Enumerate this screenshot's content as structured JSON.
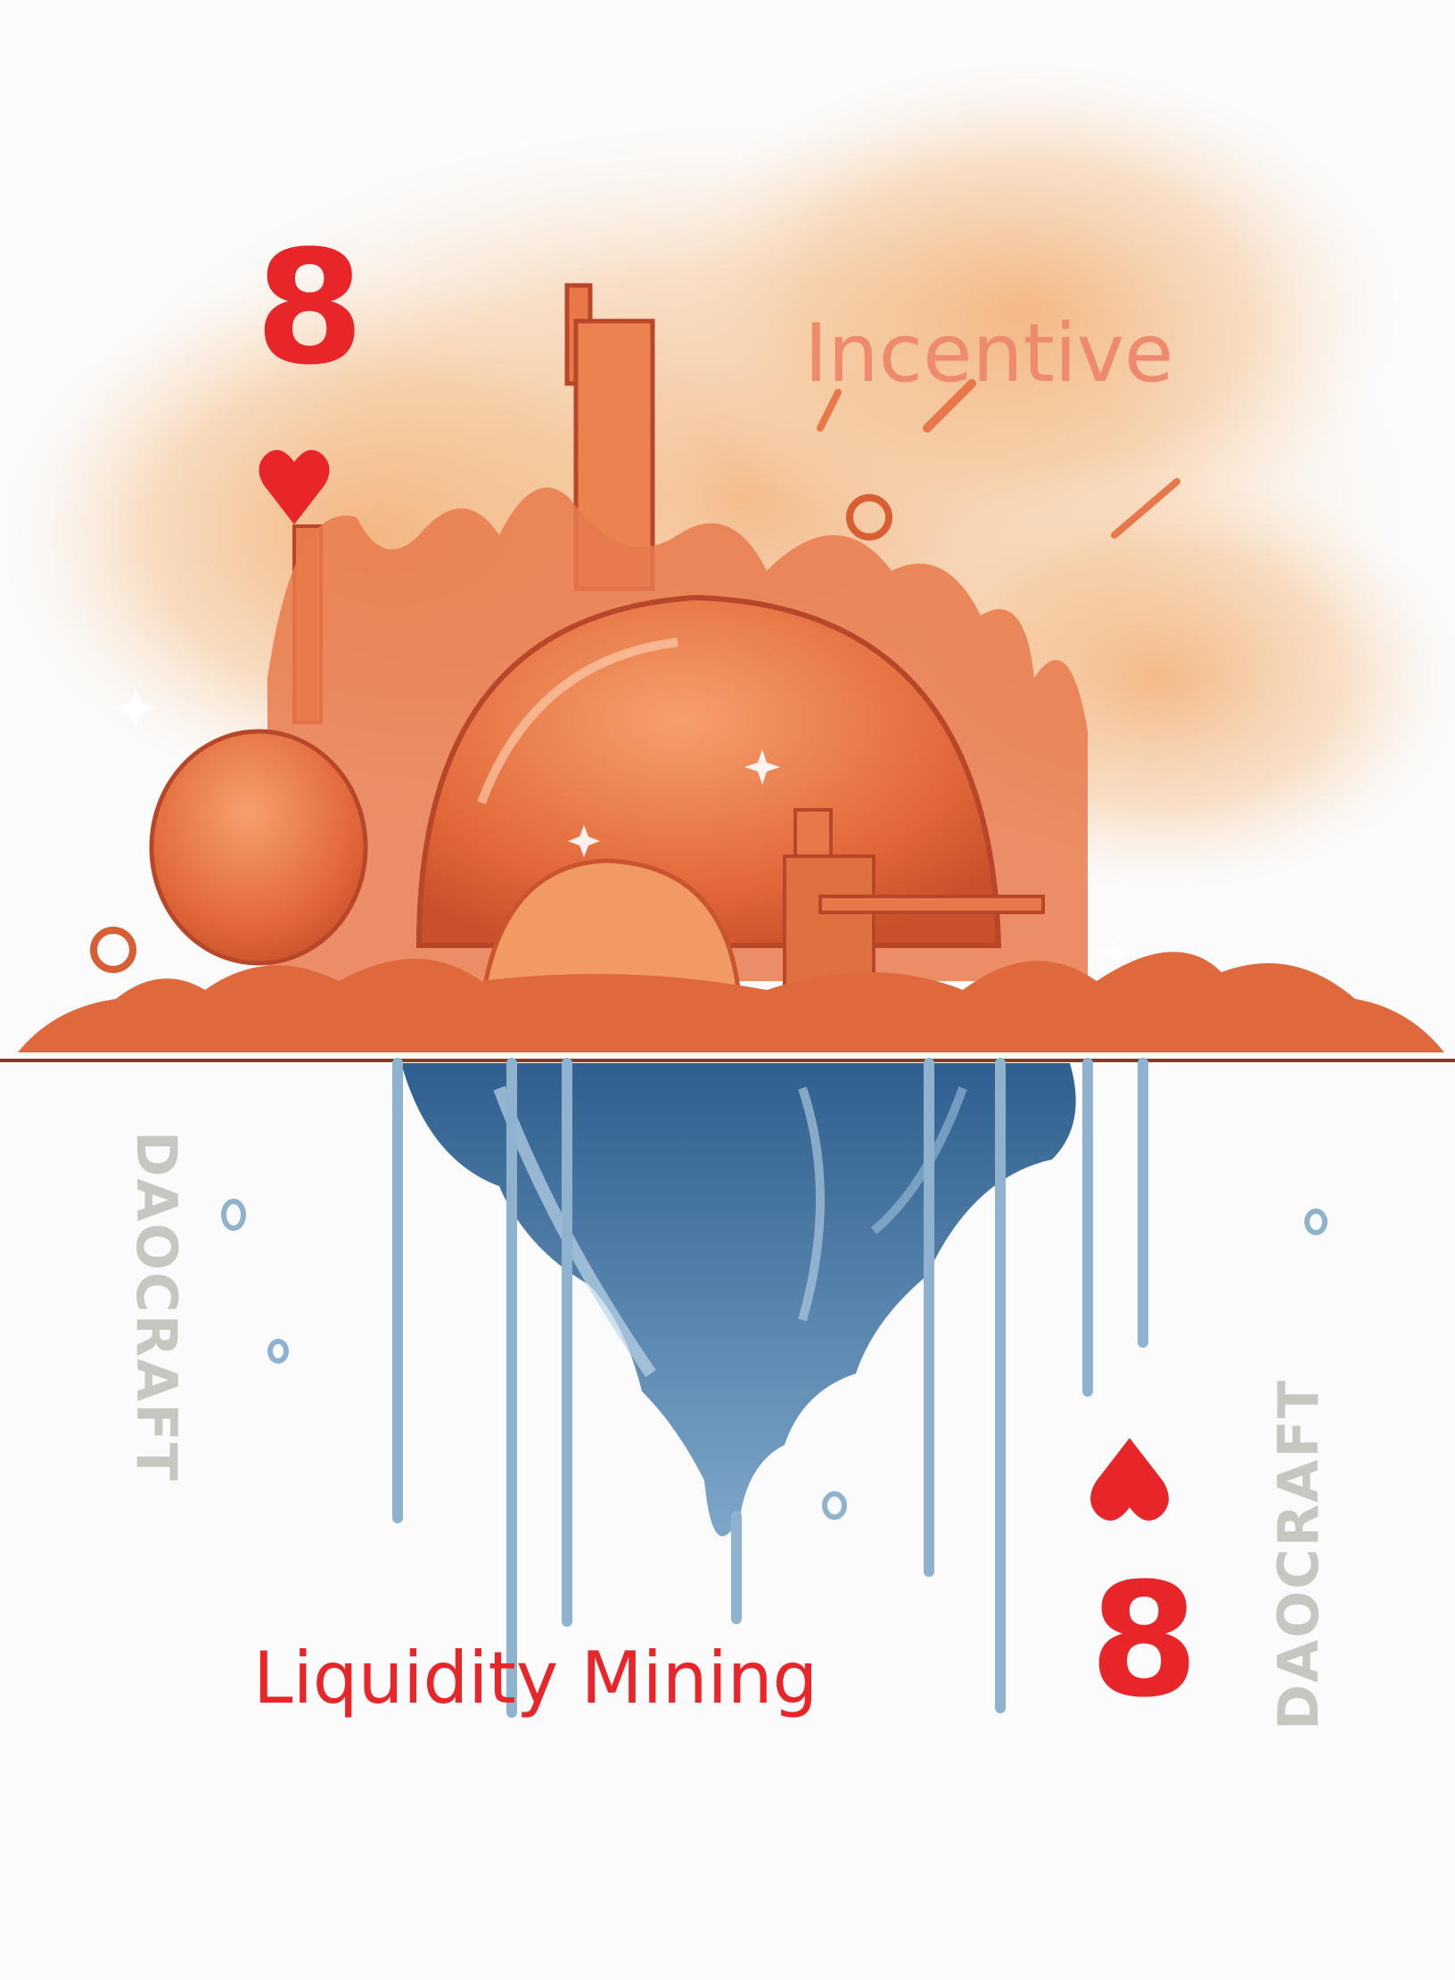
{
  "card": {
    "rank": "8",
    "suit": "hearts",
    "brand": "DAOCRAFT",
    "top_label": "Incentive",
    "bottom_label": "Liquidity Mining"
  },
  "colors": {
    "suit_red": "#e8262a",
    "label_salmon": "#ee8a6e",
    "orange": "#e0683d",
    "blue": "#5a86ad",
    "background": "#fbfbfb"
  }
}
